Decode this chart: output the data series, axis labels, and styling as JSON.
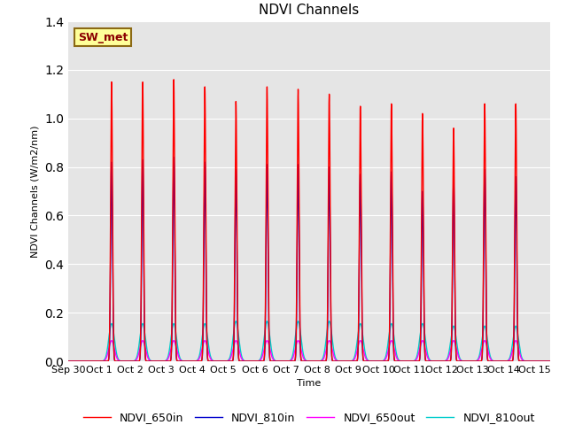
{
  "title": "NDVI Channels",
  "ylabel": "NDVI Channels (W/m2/nm)",
  "xlabel": "Time",
  "ylim": [
    0,
    1.4
  ],
  "yticks": [
    0.0,
    0.2,
    0.4,
    0.6,
    0.8,
    1.0,
    1.2,
    1.4
  ],
  "xtick_labels": [
    "Sep 30",
    "Oct 1",
    "Oct 2",
    "Oct 3",
    "Oct 4",
    "Oct 5",
    "Oct 6",
    "Oct 7",
    "Oct 8",
    "Oct 9",
    "Oct 10",
    "Oct 11",
    "Oct 12",
    "Oct 13",
    "Oct 14",
    "Oct 15"
  ],
  "xtick_positions": [
    0,
    1,
    2,
    3,
    4,
    5,
    6,
    7,
    8,
    9,
    10,
    11,
    12,
    13,
    14,
    15
  ],
  "legend_label": "SW_met",
  "series": {
    "NDVI_650in": {
      "color": "#ff0000",
      "linewidth": 1.0
    },
    "NDVI_810in": {
      "color": "#0000cc",
      "linewidth": 1.0
    },
    "NDVI_650out": {
      "color": "#ff00ff",
      "linewidth": 1.0
    },
    "NDVI_810out": {
      "color": "#00cccc",
      "linewidth": 1.0
    }
  },
  "peaks_650in": [
    1.15,
    1.15,
    1.16,
    1.13,
    1.07,
    1.13,
    1.12,
    1.1,
    1.05,
    1.06,
    1.02,
    0.96,
    1.06,
    1.06
  ],
  "peaks_810in": [
    0.82,
    0.83,
    0.84,
    0.82,
    0.79,
    0.81,
    0.81,
    0.8,
    0.77,
    0.78,
    0.7,
    0.75,
    0.79,
    0.76
  ],
  "peaks_650out": [
    0.085,
    0.085,
    0.085,
    0.085,
    0.085,
    0.085,
    0.085,
    0.085,
    0.085,
    0.085,
    0.085,
    0.085,
    0.085,
    0.085
  ],
  "peaks_810out": [
    0.155,
    0.155,
    0.155,
    0.155,
    0.165,
    0.165,
    0.165,
    0.165,
    0.155,
    0.155,
    0.155,
    0.145,
    0.145,
    0.145
  ],
  "sigma_in": 0.03,
  "sigma_out": 0.09,
  "background_color": "#e5e5e5",
  "fig_bg": "#ffffff",
  "grid_color": "#ffffff",
  "title_fontsize": 11,
  "label_fontsize": 8,
  "legend_fontsize": 9
}
